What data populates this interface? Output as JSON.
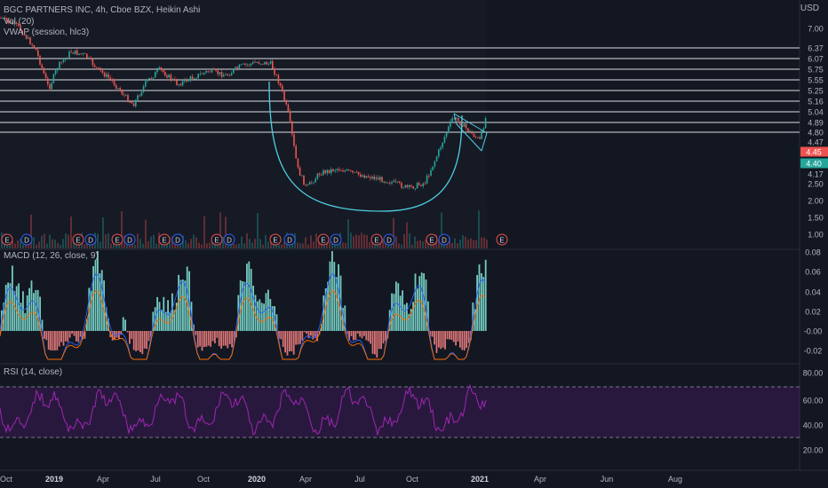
{
  "header": {
    "title": "BGC PARTNERS INC, 4h, Cboe BZX, Heikin Ashi",
    "vol": "Vol (20)",
    "vwap": "VWAP (session, hlc3)",
    "currency": "USD"
  },
  "colors": {
    "background": "#131722",
    "up": "#26a69a",
    "down": "#ef5350",
    "annotation": "#4dd0e1",
    "rsi_line": "#9c27b0",
    "macd_line": "#2962ff",
    "signal_line": "#ff6d00",
    "grid": "#2a2e39",
    "hline": "#ffffff"
  },
  "chart_data": [
    {
      "type": "candlestick",
      "pane": "price",
      "title": "BGC PARTNERS INC, 4h, Cboe BZX, Heikin Ashi",
      "y_ticks": [
        "7.00",
        "6.37",
        "6.07",
        "5.75",
        "5.55",
        "5.25",
        "5.16",
        "5.04",
        "4.89",
        "4.80",
        "4.47",
        "4.17",
        "2.50",
        "2.00",
        "1.50",
        "1.00"
      ],
      "horizontal_levels": [
        6.37,
        6.07,
        5.75,
        5.55,
        5.25,
        5.16,
        5.04,
        4.89,
        4.8
      ],
      "price_labels": [
        {
          "text": "4.45",
          "color": "#ef5350"
        },
        {
          "text": "4.40",
          "color": "#26a69a"
        }
      ],
      "earnings_markers": [
        "E",
        "D",
        "E",
        "D",
        "E",
        "D",
        "E",
        "D",
        "E",
        "D",
        "E",
        "D",
        "E",
        "D",
        "E",
        "D",
        "E",
        "D",
        "E"
      ],
      "annotations": [
        "cup",
        "flag"
      ],
      "x_ticks": [
        "Oct",
        "2019",
        "Apr",
        "Jul",
        "Oct",
        "2020",
        "Apr",
        "Jul",
        "Oct",
        "2021",
        "Apr",
        "Jun",
        "Aug"
      ],
      "approx_series": {
        "2018-10": 7.0,
        "2018-12": 6.2,
        "2019-01": 5.3,
        "2019-02": 6.0,
        "2019-04": 5.5,
        "2019-06": 5.2,
        "2019-08": 5.7,
        "2019-10": 5.8,
        "2019-12": 6.0,
        "2020-02": 5.9,
        "2020-03": 3.5,
        "2020-04": 2.6,
        "2020-06": 2.9,
        "2020-08": 2.7,
        "2020-10": 2.5,
        "2020-11": 3.6,
        "2020-12": 4.6,
        "2021-01": 4.5,
        "2021-02": 4.9
      }
    },
    {
      "type": "bar",
      "pane": "macd",
      "title": "MACD (12, 26, close, 9)",
      "y_ticks": [
        "0.08",
        "0.06",
        "0.04",
        "0.02",
        "-0.00",
        "-0.02"
      ],
      "ylim": [
        -0.03,
        0.08
      ]
    },
    {
      "type": "line",
      "pane": "rsi",
      "title": "RSI (14, close)",
      "y_ticks": [
        "80.00",
        "60.00",
        "40.00",
        "20.00"
      ],
      "ylim": [
        10,
        90
      ],
      "bands": [
        70,
        30
      ]
    }
  ]
}
